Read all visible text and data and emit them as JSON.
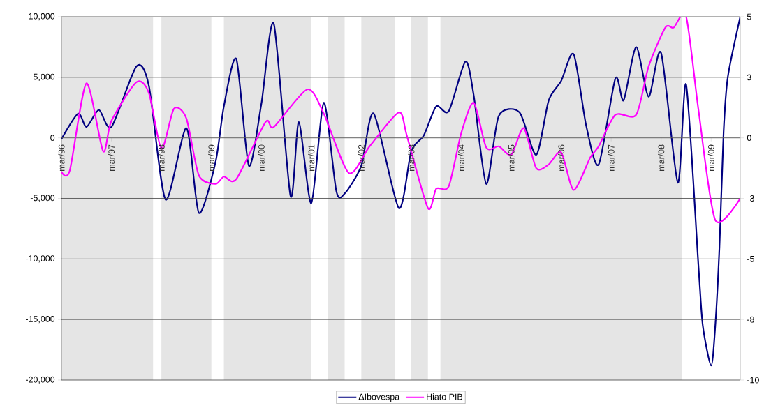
{
  "chart_data": {
    "type": "line",
    "xlim": [
      "1996-03",
      "2009-10"
    ],
    "xticks": [
      {
        "value": "1996-03",
        "label": "mar/96"
      },
      {
        "value": "1997-03",
        "label": "mar/97"
      },
      {
        "value": "1998-03",
        "label": "mar/98"
      },
      {
        "value": "1999-03",
        "label": "mar/99"
      },
      {
        "value": "2000-03",
        "label": "mar/00"
      },
      {
        "value": "2001-03",
        "label": "mar/01"
      },
      {
        "value": "2002-03",
        "label": "mar/02"
      },
      {
        "value": "2003-03",
        "label": "mar/03"
      },
      {
        "value": "2004-03",
        "label": "mar/04"
      },
      {
        "value": "2005-03",
        "label": "mar/05"
      },
      {
        "value": "2006-03",
        "label": "mar/06"
      },
      {
        "value": "2007-03",
        "label": "mar/07"
      },
      {
        "value": "2008-03",
        "label": "mar/08"
      },
      {
        "value": "2009-03",
        "label": "mar/09"
      }
    ],
    "ylim": [
      -20000,
      10000
    ],
    "yticks": [
      {
        "value": -20000,
        "label": "-20,000"
      },
      {
        "value": -15000,
        "label": "-15,000"
      },
      {
        "value": -10000,
        "label": "-10,000"
      },
      {
        "value": -5000,
        "label": "-5,000"
      },
      0,
      {
        "value": 5000,
        "label": "5,000"
      },
      {
        "value": 10000,
        "label": "10,000"
      }
    ],
    "y2lim": [
      -10,
      5
    ],
    "y2ticks": [
      -10,
      {
        "value": -7.5,
        "label": "-8"
      },
      -5,
      {
        "value": -2.5,
        "label": "-3"
      },
      0,
      {
        "value": 2.5,
        "label": "3"
      },
      5
    ],
    "grid": "y",
    "legend": "bottom",
    "bands": [
      {
        "axis": "x",
        "from": "1996-03",
        "to": "1998-01",
        "color": "#e5e5e5"
      },
      {
        "axis": "x",
        "from": "1998-03",
        "to": "1999-03",
        "color": "#e5e5e5"
      },
      {
        "axis": "x",
        "from": "1999-06",
        "to": "2001-03",
        "color": "#e5e5e5"
      },
      {
        "axis": "x",
        "from": "2001-07",
        "to": "2001-11",
        "color": "#e5e5e5"
      },
      {
        "axis": "x",
        "from": "2002-03",
        "to": "2002-11",
        "color": "#e5e5e5"
      },
      {
        "axis": "x",
        "from": "2003-03",
        "to": "2003-07",
        "color": "#e5e5e5"
      },
      {
        "axis": "x",
        "from": "2003-10",
        "to": "2008-08",
        "color": "#e5e5e5"
      }
    ],
    "series": [
      {
        "name": "ΔIbovespa",
        "color": "#000080",
        "x": [
          "1996-03",
          "1996-07",
          "1996-09",
          "1996-12",
          "1997-03",
          "1997-09",
          "1997-12",
          "1998-04",
          "1998-09",
          "1998-12",
          "1999-04",
          "1999-06",
          "1999-09",
          "1999-12",
          "2000-03",
          "2000-06",
          "2000-10",
          "2000-12",
          "2001-03",
          "2001-06",
          "2001-09",
          "2001-11",
          "2002-03",
          "2002-06",
          "2002-12",
          "2003-03",
          "2003-06",
          "2003-09",
          "2003-12",
          "2004-04",
          "2004-06",
          "2004-09",
          "2004-12",
          "2005-05",
          "2005-09",
          "2005-12",
          "2006-03",
          "2006-06",
          "2006-09",
          "2006-12",
          "2007-04",
          "2007-06",
          "2007-09",
          "2007-12",
          "2008-03",
          "2008-07",
          "2008-09",
          "2008-12",
          "2009-01",
          "2009-03",
          "2009-04",
          "2009-05",
          "2009-06",
          "2009-07",
          "2009-10"
        ],
        "values": [
          -100,
          2000,
          900,
          2300,
          900,
          5900,
          4300,
          -5100,
          800,
          -6200,
          -2000,
          2600,
          6500,
          -2300,
          2800,
          9400,
          -4800,
          1300,
          -5400,
          2900,
          -4400,
          -4600,
          -2300,
          2000,
          -5800,
          -1100,
          200,
          2600,
          2200,
          6300,
          3500,
          -3800,
          1800,
          2100,
          -1400,
          3100,
          4700,
          6900,
          1000,
          -2200,
          4900,
          3100,
          7500,
          3400,
          7000,
          -3700,
          4400,
          -10800,
          -15500,
          -18800,
          -15500,
          -9000,
          500,
          5000,
          10000
        ]
      },
      {
        "name": "Hiato PIB",
        "color": "#ff00ff",
        "axis": "y2",
        "x": [
          "1996-03",
          "1996-05",
          "1996-09",
          "1997-01",
          "1997-03",
          "1997-09",
          "1997-12",
          "1998-03",
          "1998-06",
          "1998-09",
          "1998-12",
          "1999-04",
          "1999-06",
          "1999-09",
          "2000-04",
          "2000-06",
          "2001-02",
          "2001-06",
          "2001-12",
          "2002-05",
          "2002-12",
          "2003-02",
          "2003-07",
          "2003-09",
          "2003-12",
          "2004-03",
          "2004-06",
          "2004-09",
          "2004-12",
          "2005-03",
          "2005-06",
          "2005-09",
          "2005-12",
          "2006-03",
          "2006-06",
          "2006-10",
          "2006-12",
          "2007-04",
          "2007-09",
          "2007-12",
          "2008-04",
          "2008-06",
          "2008-09",
          "2008-12",
          "2009-04",
          "2009-10"
        ],
        "values": [
          -1.4,
          -1.35,
          2.25,
          -0.55,
          0.7,
          2.3,
          1.85,
          -0.45,
          1.2,
          0.8,
          -1.55,
          -1.9,
          -1.6,
          -1.7,
          0.65,
          0.45,
          2.0,
          1.0,
          -1.45,
          -0.35,
          1.05,
          0.05,
          -2.9,
          -2.1,
          -2.0,
          0.2,
          1.45,
          -0.4,
          -0.35,
          -0.7,
          0.4,
          -1.25,
          -1.1,
          -0.6,
          -2.15,
          -0.8,
          -0.35,
          0.95,
          0.95,
          2.95,
          4.55,
          4.55,
          5.0,
          1.1,
          -3.4,
          -2.5
        ]
      }
    ]
  }
}
